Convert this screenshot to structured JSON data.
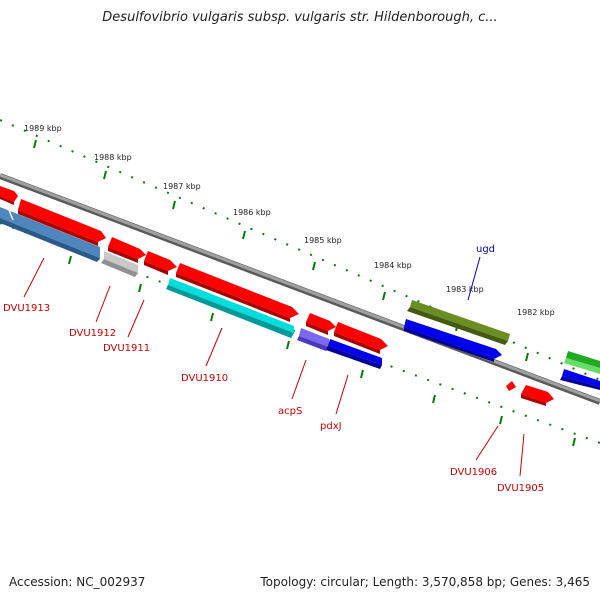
{
  "title": "Desulfovibrio vulgaris subsp. vulgaris str. Hildenborough, c...",
  "footer": {
    "accession": "Accession: NC_002937",
    "summary": "Topology: circular; Length: 3,570,858 bp; Genes: 3,465"
  },
  "colors": {
    "red": "#ff0000",
    "steelblue": "#4f86be",
    "gray": "#c0c0c0",
    "cyan": "#00cccc",
    "olive": "#6b8e23",
    "blue": "#0000ee",
    "slateblue": "#7b68ee",
    "green": "#22aa22",
    "gene_label": "#cc0000",
    "highlight_label": "#0000aa",
    "tick": "#008000",
    "backbone": "#808080"
  },
  "scale_labels": [
    "1989 kbp",
    "1988 kbp",
    "1987 kbp",
    "1986 kbp",
    "1985 kbp",
    "1984 kbp",
    "1983 kbp",
    "1982 kbp"
  ],
  "gene_labels": [
    "ugd",
    "DVU1913",
    "DVU1912",
    "DVU1911",
    "DVU1910",
    "acpS",
    "pdxJ",
    "DVU1906",
    "DVU1905"
  ]
}
